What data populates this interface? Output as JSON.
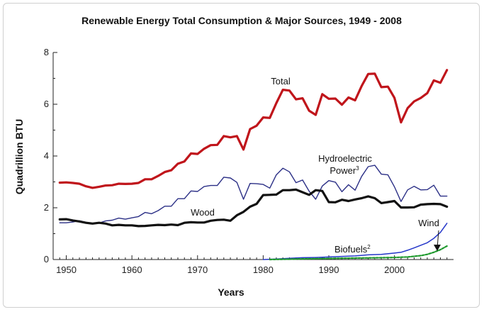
{
  "chart_data": {
    "type": "line",
    "title": "Renewable Energy Total Consumption & Major Sources, 1949 - 2008",
    "xlabel": "Years",
    "ylabel": "Quadrillion BTU",
    "xlim": [
      1948,
      2009
    ],
    "ylim": [
      0,
      8
    ],
    "xticks": [
      1950,
      1960,
      1970,
      1980,
      1990,
      2000
    ],
    "yticks": [
      0,
      2,
      4,
      6,
      8
    ],
    "series": [
      {
        "name": "Total",
        "label": "Total",
        "color": "#c0151b",
        "x": [
          1949,
          1950,
          1951,
          1952,
          1953,
          1954,
          1955,
          1956,
          1957,
          1958,
          1959,
          1960,
          1961,
          1962,
          1963,
          1964,
          1965,
          1966,
          1967,
          1968,
          1969,
          1970,
          1971,
          1972,
          1973,
          1974,
          1975,
          1976,
          1977,
          1978,
          1979,
          1980,
          1981,
          1982,
          1983,
          1984,
          1985,
          1986,
          1987,
          1988,
          1989,
          1990,
          1991,
          1992,
          1993,
          1994,
          1995,
          1996,
          1997,
          1998,
          1999,
          2000,
          2001,
          2002,
          2003,
          2004,
          2005,
          2006,
          2007,
          2008
        ],
        "values": [
          2.97,
          2.98,
          2.96,
          2.93,
          2.83,
          2.77,
          2.81,
          2.86,
          2.87,
          2.93,
          2.92,
          2.93,
          2.96,
          3.1,
          3.1,
          3.23,
          3.38,
          3.45,
          3.7,
          3.79,
          4.1,
          4.08,
          4.28,
          4.42,
          4.43,
          4.77,
          4.72,
          4.77,
          4.25,
          5.04,
          5.17,
          5.49,
          5.47,
          6.04,
          6.56,
          6.53,
          6.19,
          6.23,
          5.75,
          5.59,
          6.39,
          6.21,
          6.22,
          5.98,
          6.26,
          6.15,
          6.7,
          7.17,
          7.18,
          6.66,
          6.68,
          6.25,
          5.3,
          5.85,
          6.11,
          6.24,
          6.43,
          6.92,
          6.83,
          7.32
        ]
      },
      {
        "name": "Hydroelectric Power",
        "label_line1": "Hydroelectric",
        "label_line2": "Power",
        "label_sup": "3",
        "color": "#2b2f86",
        "x": [
          1949,
          1950,
          1951,
          1952,
          1953,
          1954,
          1955,
          1956,
          1957,
          1958,
          1959,
          1960,
          1961,
          1962,
          1963,
          1964,
          1965,
          1966,
          1967,
          1968,
          1969,
          1970,
          1971,
          1972,
          1973,
          1974,
          1975,
          1976,
          1977,
          1978,
          1979,
          1980,
          1981,
          1982,
          1983,
          1984,
          1985,
          1986,
          1987,
          1988,
          1989,
          1990,
          1991,
          1992,
          1993,
          1994,
          1995,
          1996,
          1997,
          1998,
          1999,
          2000,
          2001,
          2002,
          2003,
          2004,
          2005,
          2006,
          2007,
          2008
        ],
        "values": [
          1.42,
          1.42,
          1.45,
          1.5,
          1.44,
          1.39,
          1.41,
          1.49,
          1.52,
          1.6,
          1.56,
          1.61,
          1.66,
          1.82,
          1.77,
          1.89,
          2.06,
          2.06,
          2.35,
          2.35,
          2.65,
          2.63,
          2.82,
          2.86,
          2.86,
          3.18,
          3.15,
          2.98,
          2.33,
          2.94,
          2.93,
          2.9,
          2.76,
          3.27,
          3.53,
          3.39,
          2.97,
          3.07,
          2.64,
          2.33,
          2.84,
          3.05,
          2.99,
          2.62,
          2.89,
          2.68,
          3.21,
          3.59,
          3.64,
          3.3,
          3.27,
          2.81,
          2.24,
          2.69,
          2.83,
          2.69,
          2.7,
          2.87,
          2.45,
          2.45
        ]
      },
      {
        "name": "Wood",
        "label": "Wood",
        "color": "#111111",
        "x": [
          1949,
          1950,
          1951,
          1952,
          1953,
          1954,
          1955,
          1956,
          1957,
          1958,
          1959,
          1960,
          1961,
          1962,
          1963,
          1964,
          1965,
          1966,
          1967,
          1968,
          1969,
          1970,
          1971,
          1972,
          1973,
          1974,
          1975,
          1976,
          1977,
          1978,
          1979,
          1980,
          1981,
          1982,
          1983,
          1984,
          1985,
          1986,
          1987,
          1988,
          1989,
          1990,
          1991,
          1992,
          1993,
          1994,
          1995,
          1996,
          1997,
          1998,
          1999,
          2000,
          2001,
          2002,
          2003,
          2004,
          2005,
          2006,
          2007,
          2008
        ],
        "values": [
          1.55,
          1.56,
          1.51,
          1.47,
          1.42,
          1.39,
          1.42,
          1.39,
          1.32,
          1.34,
          1.32,
          1.32,
          1.29,
          1.3,
          1.32,
          1.34,
          1.33,
          1.35,
          1.33,
          1.42,
          1.44,
          1.43,
          1.43,
          1.5,
          1.53,
          1.54,
          1.5,
          1.71,
          1.84,
          2.04,
          2.15,
          2.49,
          2.5,
          2.51,
          2.68,
          2.68,
          2.7,
          2.6,
          2.5,
          2.68,
          2.65,
          2.22,
          2.21,
          2.31,
          2.26,
          2.32,
          2.37,
          2.44,
          2.37,
          2.18,
          2.22,
          2.26,
          2.01,
          2.01,
          2.02,
          2.12,
          2.14,
          2.15,
          2.14,
          2.04
        ]
      },
      {
        "name": "Wind",
        "label": "Wind",
        "color": "#2436c9",
        "x": [
          1980,
          1982,
          1984,
          1986,
          1988,
          1990,
          1992,
          1994,
          1996,
          1998,
          2000,
          2001,
          2002,
          2003,
          2004,
          2005,
          2006,
          2007,
          2008
        ],
        "values": [
          0.0,
          0.02,
          0.05,
          0.07,
          0.08,
          0.1,
          0.12,
          0.14,
          0.18,
          0.2,
          0.25,
          0.28,
          0.36,
          0.45,
          0.55,
          0.65,
          0.82,
          1.05,
          1.4
        ]
      },
      {
        "name": "Biofuels",
        "label": "Biofuels",
        "label_sup": "2",
        "color": "#1f9a2e",
        "x": [
          1981,
          1985,
          1990,
          1995,
          2000,
          2002,
          2004,
          2005,
          2006,
          2007,
          2008
        ],
        "values": [
          0.0,
          0.02,
          0.04,
          0.06,
          0.08,
          0.1,
          0.15,
          0.2,
          0.28,
          0.38,
          0.52
        ]
      }
    ],
    "grid": false
  }
}
